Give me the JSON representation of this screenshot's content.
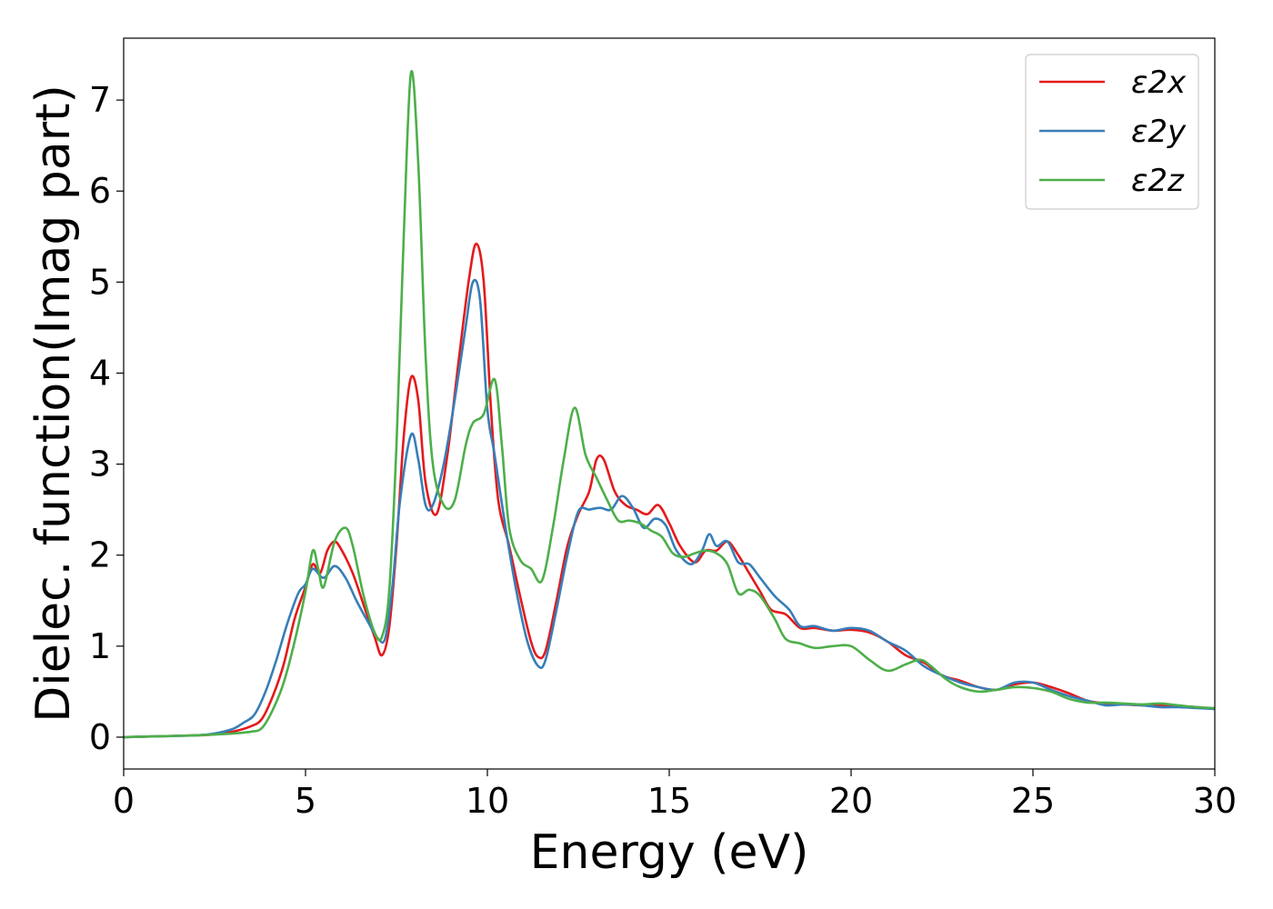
{
  "chart_data": {
    "type": "line",
    "xlabel": "Energy (eV)",
    "ylabel": "Dielec. function(Imag part)",
    "xlim": [
      0,
      30
    ],
    "ylim": [
      -0.35,
      7.68
    ],
    "xticks": [
      0,
      5,
      10,
      15,
      20,
      25,
      30
    ],
    "yticks": [
      0,
      1,
      2,
      3,
      4,
      5,
      6,
      7
    ],
    "legend_position": "top-right",
    "grid": false,
    "series": [
      {
        "name": "ε2x",
        "color": "#e41a1c",
        "points": [
          [
            0,
            0.0
          ],
          [
            1,
            0.01
          ],
          [
            2,
            0.02
          ],
          [
            2.5,
            0.03
          ],
          [
            3,
            0.06
          ],
          [
            3.5,
            0.12
          ],
          [
            3.8,
            0.2
          ],
          [
            4.1,
            0.45
          ],
          [
            4.4,
            0.8
          ],
          [
            4.7,
            1.3
          ],
          [
            5.0,
            1.65
          ],
          [
            5.2,
            1.9
          ],
          [
            5.4,
            1.8
          ],
          [
            5.6,
            2.05
          ],
          [
            5.8,
            2.15
          ],
          [
            6.0,
            2.05
          ],
          [
            6.3,
            1.8
          ],
          [
            6.6,
            1.45
          ],
          [
            6.9,
            1.1
          ],
          [
            7.1,
            0.9
          ],
          [
            7.3,
            1.2
          ],
          [
            7.5,
            2.1
          ],
          [
            7.7,
            3.3
          ],
          [
            7.9,
            3.95
          ],
          [
            8.1,
            3.7
          ],
          [
            8.3,
            2.8
          ],
          [
            8.6,
            2.45
          ],
          [
            8.9,
            3.1
          ],
          [
            9.2,
            4.1
          ],
          [
            9.5,
            5.05
          ],
          [
            9.7,
            5.42
          ],
          [
            9.9,
            5.0
          ],
          [
            10.1,
            3.6
          ],
          [
            10.3,
            2.6
          ],
          [
            10.6,
            2.1
          ],
          [
            10.9,
            1.55
          ],
          [
            11.2,
            1.05
          ],
          [
            11.4,
            0.88
          ],
          [
            11.6,
            0.95
          ],
          [
            11.9,
            1.5
          ],
          [
            12.2,
            2.1
          ],
          [
            12.5,
            2.45
          ],
          [
            12.8,
            2.7
          ],
          [
            13.0,
            3.05
          ],
          [
            13.2,
            3.05
          ],
          [
            13.5,
            2.7
          ],
          [
            13.8,
            2.55
          ],
          [
            14.1,
            2.5
          ],
          [
            14.4,
            2.45
          ],
          [
            14.7,
            2.55
          ],
          [
            15.0,
            2.35
          ],
          [
            15.3,
            2.1
          ],
          [
            15.7,
            1.92
          ],
          [
            16.0,
            2.05
          ],
          [
            16.3,
            2.05
          ],
          [
            16.6,
            2.15
          ],
          [
            16.9,
            2.0
          ],
          [
            17.2,
            1.8
          ],
          [
            17.5,
            1.6
          ],
          [
            17.8,
            1.4
          ],
          [
            18.2,
            1.35
          ],
          [
            18.6,
            1.2
          ],
          [
            19.0,
            1.2
          ],
          [
            19.5,
            1.17
          ],
          [
            20.0,
            1.18
          ],
          [
            20.5,
            1.15
          ],
          [
            21.0,
            1.05
          ],
          [
            21.5,
            0.9
          ],
          [
            22.0,
            0.82
          ],
          [
            22.5,
            0.68
          ],
          [
            23.0,
            0.62
          ],
          [
            23.5,
            0.55
          ],
          [
            24.0,
            0.52
          ],
          [
            24.5,
            0.58
          ],
          [
            25.0,
            0.6
          ],
          [
            25.5,
            0.55
          ],
          [
            26.0,
            0.48
          ],
          [
            26.5,
            0.4
          ],
          [
            27.0,
            0.37
          ],
          [
            27.5,
            0.36
          ],
          [
            28.0,
            0.35
          ],
          [
            28.5,
            0.35
          ],
          [
            29.0,
            0.34
          ],
          [
            29.5,
            0.33
          ],
          [
            30.0,
            0.31
          ]
        ]
      },
      {
        "name": "ε2y",
        "color": "#377eb8",
        "points": [
          [
            0,
            0.0
          ],
          [
            1,
            0.01
          ],
          [
            2,
            0.02
          ],
          [
            2.5,
            0.04
          ],
          [
            3,
            0.09
          ],
          [
            3.3,
            0.16
          ],
          [
            3.6,
            0.25
          ],
          [
            3.9,
            0.5
          ],
          [
            4.2,
            0.85
          ],
          [
            4.5,
            1.25
          ],
          [
            4.8,
            1.58
          ],
          [
            5.0,
            1.68
          ],
          [
            5.2,
            1.85
          ],
          [
            5.5,
            1.75
          ],
          [
            5.8,
            1.88
          ],
          [
            6.1,
            1.75
          ],
          [
            6.4,
            1.5
          ],
          [
            6.7,
            1.28
          ],
          [
            7.0,
            1.08
          ],
          [
            7.2,
            1.1
          ],
          [
            7.4,
            1.7
          ],
          [
            7.6,
            2.6
          ],
          [
            7.9,
            3.32
          ],
          [
            8.1,
            3.05
          ],
          [
            8.3,
            2.55
          ],
          [
            8.5,
            2.55
          ],
          [
            8.8,
            3.0
          ],
          [
            9.1,
            3.7
          ],
          [
            9.4,
            4.5
          ],
          [
            9.6,
            5.0
          ],
          [
            9.8,
            4.8
          ],
          [
            10.0,
            3.6
          ],
          [
            10.2,
            3.1
          ],
          [
            10.5,
            2.3
          ],
          [
            10.8,
            1.6
          ],
          [
            11.1,
            1.05
          ],
          [
            11.4,
            0.78
          ],
          [
            11.6,
            0.85
          ],
          [
            11.9,
            1.4
          ],
          [
            12.2,
            2.0
          ],
          [
            12.5,
            2.48
          ],
          [
            12.8,
            2.5
          ],
          [
            13.1,
            2.52
          ],
          [
            13.4,
            2.5
          ],
          [
            13.7,
            2.65
          ],
          [
            14.0,
            2.52
          ],
          [
            14.3,
            2.3
          ],
          [
            14.6,
            2.4
          ],
          [
            14.9,
            2.33
          ],
          [
            15.2,
            2.05
          ],
          [
            15.6,
            1.9
          ],
          [
            15.9,
            2.05
          ],
          [
            16.1,
            2.23
          ],
          [
            16.3,
            2.1
          ],
          [
            16.6,
            2.15
          ],
          [
            16.9,
            1.92
          ],
          [
            17.2,
            1.9
          ],
          [
            17.5,
            1.75
          ],
          [
            17.9,
            1.55
          ],
          [
            18.3,
            1.4
          ],
          [
            18.6,
            1.22
          ],
          [
            19.0,
            1.22
          ],
          [
            19.5,
            1.17
          ],
          [
            20.0,
            1.2
          ],
          [
            20.5,
            1.17
          ],
          [
            21.0,
            1.05
          ],
          [
            21.5,
            0.95
          ],
          [
            22.0,
            0.78
          ],
          [
            22.5,
            0.68
          ],
          [
            23.0,
            0.6
          ],
          [
            23.5,
            0.55
          ],
          [
            24.0,
            0.52
          ],
          [
            24.5,
            0.6
          ],
          [
            25.0,
            0.6
          ],
          [
            25.5,
            0.52
          ],
          [
            26.0,
            0.45
          ],
          [
            26.5,
            0.4
          ],
          [
            27.0,
            0.35
          ],
          [
            27.5,
            0.36
          ],
          [
            28.0,
            0.35
          ],
          [
            28.5,
            0.33
          ],
          [
            29.0,
            0.33
          ],
          [
            29.5,
            0.32
          ],
          [
            30.0,
            0.31
          ]
        ]
      },
      {
        "name": "ε2z",
        "color": "#4daf4a",
        "points": [
          [
            0,
            0.0
          ],
          [
            1,
            0.01
          ],
          [
            2,
            0.02
          ],
          [
            2.5,
            0.03
          ],
          [
            3,
            0.04
          ],
          [
            3.5,
            0.06
          ],
          [
            3.8,
            0.1
          ],
          [
            4.1,
            0.3
          ],
          [
            4.4,
            0.6
          ],
          [
            4.7,
            1.05
          ],
          [
            5.0,
            1.6
          ],
          [
            5.2,
            2.05
          ],
          [
            5.35,
            1.85
          ],
          [
            5.5,
            1.65
          ],
          [
            5.8,
            2.15
          ],
          [
            6.1,
            2.3
          ],
          [
            6.3,
            2.1
          ],
          [
            6.6,
            1.55
          ],
          [
            6.9,
            1.15
          ],
          [
            7.1,
            1.1
          ],
          [
            7.3,
            1.6
          ],
          [
            7.5,
            3.2
          ],
          [
            7.7,
            5.5
          ],
          [
            7.9,
            7.3
          ],
          [
            8.1,
            6.3
          ],
          [
            8.3,
            4.2
          ],
          [
            8.5,
            3.0
          ],
          [
            8.8,
            2.55
          ],
          [
            9.1,
            2.6
          ],
          [
            9.4,
            3.2
          ],
          [
            9.6,
            3.45
          ],
          [
            9.9,
            3.55
          ],
          [
            10.2,
            3.93
          ],
          [
            10.4,
            3.2
          ],
          [
            10.6,
            2.3
          ],
          [
            10.9,
            1.95
          ],
          [
            11.2,
            1.85
          ],
          [
            11.5,
            1.72
          ],
          [
            11.8,
            2.3
          ],
          [
            12.1,
            3.05
          ],
          [
            12.4,
            3.62
          ],
          [
            12.7,
            3.1
          ],
          [
            13.0,
            2.85
          ],
          [
            13.3,
            2.6
          ],
          [
            13.6,
            2.38
          ],
          [
            13.9,
            2.38
          ],
          [
            14.2,
            2.35
          ],
          [
            14.5,
            2.27
          ],
          [
            14.8,
            2.2
          ],
          [
            15.1,
            2.02
          ],
          [
            15.4,
            1.98
          ],
          [
            15.7,
            2.02
          ],
          [
            16.0,
            2.05
          ],
          [
            16.3,
            2.02
          ],
          [
            16.6,
            1.9
          ],
          [
            16.9,
            1.58
          ],
          [
            17.2,
            1.62
          ],
          [
            17.5,
            1.55
          ],
          [
            17.9,
            1.3
          ],
          [
            18.2,
            1.08
          ],
          [
            18.6,
            1.03
          ],
          [
            19.0,
            0.98
          ],
          [
            19.5,
            1.0
          ],
          [
            20.0,
            1.0
          ],
          [
            20.5,
            0.85
          ],
          [
            21.0,
            0.73
          ],
          [
            21.5,
            0.8
          ],
          [
            21.9,
            0.85
          ],
          [
            22.2,
            0.78
          ],
          [
            22.6,
            0.64
          ],
          [
            23.0,
            0.55
          ],
          [
            23.5,
            0.5
          ],
          [
            24.0,
            0.52
          ],
          [
            24.5,
            0.55
          ],
          [
            25.0,
            0.54
          ],
          [
            25.5,
            0.5
          ],
          [
            26.0,
            0.42
          ],
          [
            26.5,
            0.38
          ],
          [
            27.0,
            0.38
          ],
          [
            27.5,
            0.37
          ],
          [
            28.0,
            0.36
          ],
          [
            28.5,
            0.37
          ],
          [
            29.0,
            0.35
          ],
          [
            29.5,
            0.33
          ],
          [
            30.0,
            0.32
          ]
        ]
      }
    ]
  }
}
